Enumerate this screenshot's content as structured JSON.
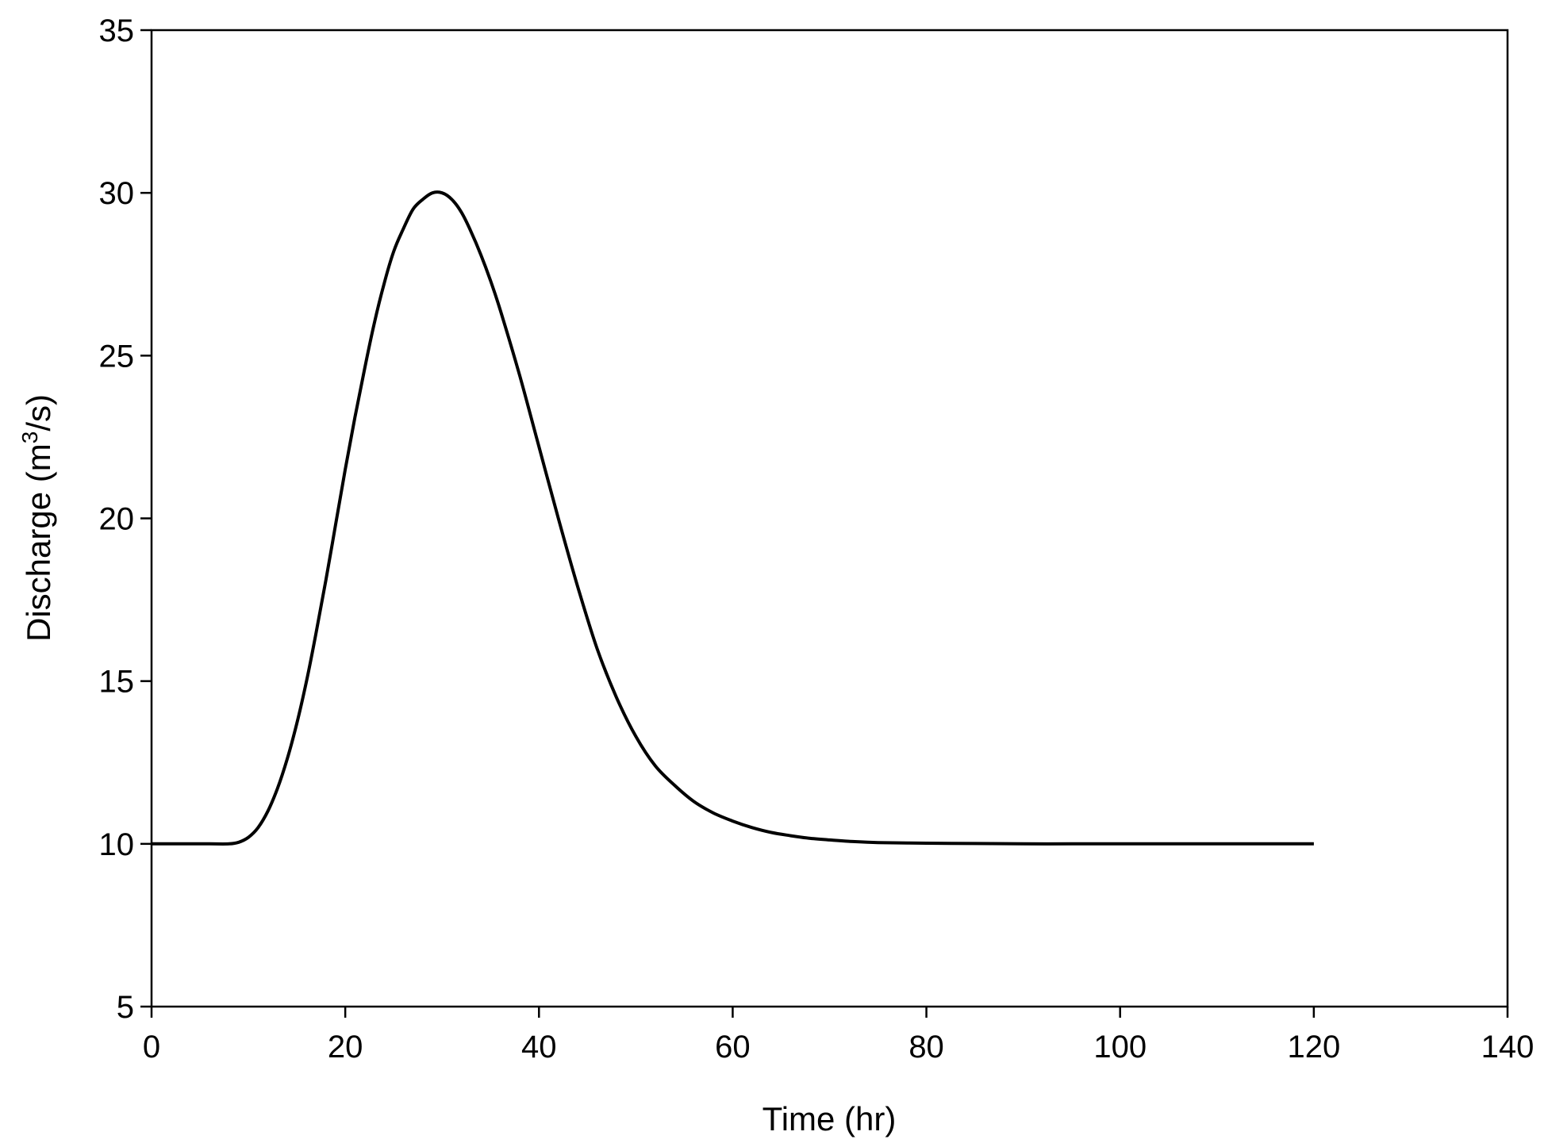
{
  "chart_data": {
    "type": "line",
    "title": "",
    "xlabel": "Time (hr)",
    "ylabel_main": "Discharge (m",
    "ylabel_sup": "3",
    "ylabel_tail": "/s)",
    "xlim": [
      0,
      140
    ],
    "ylim": [
      5,
      35
    ],
    "xticks": [
      0,
      20,
      40,
      60,
      80,
      100,
      120,
      140
    ],
    "yticks": [
      5,
      10,
      15,
      20,
      25,
      30,
      35
    ],
    "grid": false,
    "legend": "none",
    "line_color": "#000000",
    "series": [
      {
        "x": [
          0,
          2,
          4,
          6,
          8,
          9,
          10,
          11,
          12,
          13,
          14,
          15,
          16,
          17,
          18,
          19,
          20,
          21,
          22,
          23,
          24,
          25,
          26,
          27,
          28,
          29,
          30,
          31,
          32,
          33,
          34,
          35,
          36,
          38,
          40,
          42,
          44,
          46,
          48,
          50,
          52,
          54,
          56,
          58,
          60,
          62,
          64,
          66,
          68,
          70,
          72,
          75,
          80,
          85,
          90,
          95,
          100,
          110,
          120
        ],
        "y": [
          10.0,
          10.0,
          10.0,
          10.0,
          10.0,
          10.05,
          10.2,
          10.5,
          11.0,
          11.7,
          12.6,
          13.7,
          15.0,
          16.5,
          18.1,
          19.8,
          21.5,
          23.1,
          24.6,
          26.0,
          27.2,
          28.2,
          28.9,
          29.5,
          29.8,
          30.0,
          30.0,
          29.8,
          29.4,
          28.8,
          28.1,
          27.3,
          26.4,
          24.4,
          22.2,
          20.0,
          17.9,
          16.0,
          14.5,
          13.3,
          12.4,
          11.8,
          11.3,
          10.95,
          10.7,
          10.5,
          10.35,
          10.25,
          10.17,
          10.12,
          10.08,
          10.04,
          10.02,
          10.01,
          10.0,
          10.0,
          10.0,
          10.0,
          10.0
        ]
      }
    ]
  }
}
